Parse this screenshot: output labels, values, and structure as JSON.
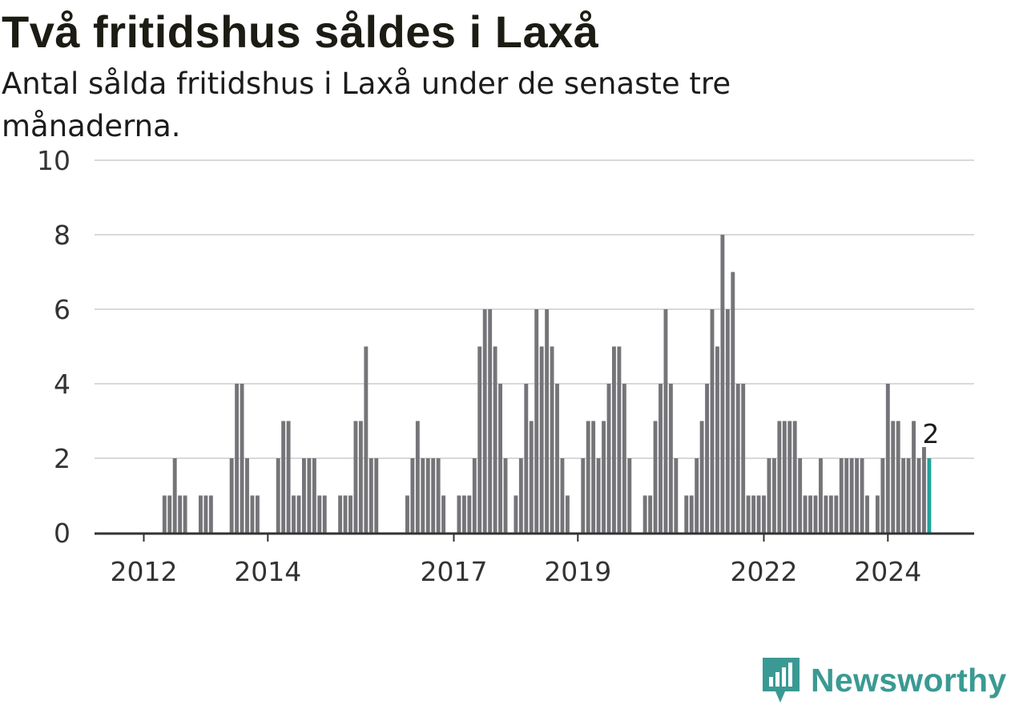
{
  "header": {
    "title": "Två fritidshus såldes i Laxå",
    "subtitle": "Antal sålda fritidshus i Laxå under de senaste tre månaderna."
  },
  "brand": {
    "name": "Newsworthy",
    "icon": "newsworthy-logo-icon"
  },
  "colors": {
    "bar": "#757579",
    "highlight": "#1fa49c",
    "grid": "#d9d9d9",
    "axis": "#333333",
    "brand": "#3a9a93"
  },
  "chart_data": {
    "type": "bar",
    "ylim": [
      0,
      10
    ],
    "yticks": [
      0,
      2,
      4,
      6,
      8,
      10
    ],
    "grid": true,
    "x_tick_labels": [
      "2012",
      "2014",
      "2017",
      "2019",
      "2022",
      "2024"
    ],
    "x_tick_indices": [
      9,
      33,
      69,
      93,
      129,
      153
    ],
    "highlight_label": "2",
    "values": [
      0,
      0,
      0,
      0,
      0,
      0,
      0,
      0,
      0,
      0,
      0,
      0,
      0,
      1,
      1,
      2,
      1,
      1,
      0,
      0,
      1,
      1,
      1,
      0,
      0,
      0,
      2,
      4,
      4,
      2,
      1,
      1,
      0,
      0,
      0,
      2,
      3,
      3,
      1,
      1,
      2,
      2,
      2,
      1,
      1,
      0,
      0,
      1,
      1,
      1,
      3,
      3,
      5,
      2,
      2,
      0,
      0,
      0,
      0,
      0,
      1,
      2,
      3,
      2,
      2,
      2,
      2,
      1,
      0,
      0,
      1,
      1,
      1,
      2,
      5,
      6,
      6,
      5,
      4,
      2,
      0,
      1,
      2,
      4,
      3,
      6,
      5,
      6,
      5,
      4,
      2,
      1,
      0,
      0,
      2,
      3,
      3,
      2,
      3,
      4,
      5,
      5,
      4,
      2,
      0,
      0,
      1,
      1,
      3,
      4,
      6,
      4,
      2,
      0,
      1,
      1,
      2,
      3,
      4,
      6,
      5,
      8,
      6,
      7,
      4,
      4,
      1,
      1,
      1,
      1,
      2,
      2,
      3,
      3,
      3,
      3,
      2,
      1,
      1,
      1,
      2,
      1,
      1,
      1,
      2,
      2,
      2,
      2,
      2,
      1,
      0,
      1,
      2,
      4,
      3,
      3,
      2,
      2,
      3,
      2,
      2.3,
      2
    ]
  }
}
